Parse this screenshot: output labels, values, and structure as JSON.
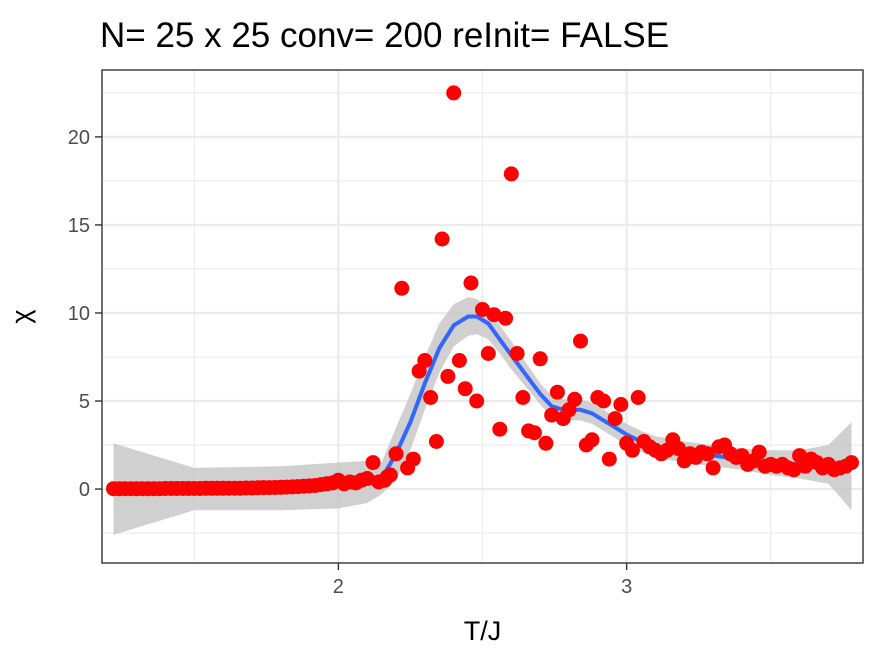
{
  "chart_data": {
    "type": "scatter",
    "title": "N= 25 x 25  conv= 200  reInit= FALSE",
    "xlabel": "T/J",
    "ylabel": "χ",
    "xlim": [
      1.18,
      3.82
    ],
    "ylim": [
      -4.2,
      23.8
    ],
    "x_ticks": [
      2,
      3
    ],
    "x_tick_labels": [
      "2",
      "3"
    ],
    "y_ticks": [
      0,
      5,
      10,
      15,
      20
    ],
    "y_tick_labels": [
      "0",
      "5",
      "10",
      "15",
      "20"
    ],
    "grid": true,
    "legend": "none",
    "colors": {
      "points": "#ff0000",
      "smooth_line": "#3366ff",
      "confidence_band": "#c8c8c8",
      "grid": "#ebebeb",
      "panel_border": "#333333"
    },
    "series": [
      {
        "kind": "points",
        "points": [
          [
            1.22,
            0.02
          ],
          [
            1.24,
            0.02
          ],
          [
            1.26,
            0.02
          ],
          [
            1.28,
            0.02
          ],
          [
            1.3,
            0.02
          ],
          [
            1.32,
            0.02
          ],
          [
            1.34,
            0.02
          ],
          [
            1.36,
            0.02
          ],
          [
            1.38,
            0.02
          ],
          [
            1.4,
            0.03
          ],
          [
            1.42,
            0.03
          ],
          [
            1.44,
            0.03
          ],
          [
            1.46,
            0.03
          ],
          [
            1.48,
            0.03
          ],
          [
            1.5,
            0.03
          ],
          [
            1.52,
            0.03
          ],
          [
            1.54,
            0.04
          ],
          [
            1.56,
            0.04
          ],
          [
            1.58,
            0.04
          ],
          [
            1.6,
            0.04
          ],
          [
            1.62,
            0.05
          ],
          [
            1.64,
            0.05
          ],
          [
            1.66,
            0.05
          ],
          [
            1.68,
            0.06
          ],
          [
            1.7,
            0.06
          ],
          [
            1.72,
            0.07
          ],
          [
            1.74,
            0.08
          ],
          [
            1.76,
            0.08
          ],
          [
            1.78,
            0.09
          ],
          [
            1.8,
            0.1
          ],
          [
            1.82,
            0.11
          ],
          [
            1.84,
            0.12
          ],
          [
            1.86,
            0.14
          ],
          [
            1.88,
            0.16
          ],
          [
            1.9,
            0.18
          ],
          [
            1.92,
            0.2
          ],
          [
            1.94,
            0.25
          ],
          [
            1.96,
            0.3
          ],
          [
            1.98,
            0.35
          ],
          [
            2.0,
            0.5
          ],
          [
            2.02,
            0.3
          ],
          [
            2.04,
            0.4
          ],
          [
            2.06,
            0.35
          ],
          [
            2.08,
            0.5
          ],
          [
            2.1,
            0.6
          ],
          [
            2.12,
            1.5
          ],
          [
            2.14,
            0.4
          ],
          [
            2.16,
            0.5
          ],
          [
            2.17,
            0.7
          ],
          [
            2.18,
            0.8
          ],
          [
            2.2,
            2.0
          ],
          [
            2.22,
            11.4
          ],
          [
            2.24,
            1.2
          ],
          [
            2.26,
            1.7
          ],
          [
            2.28,
            6.7
          ],
          [
            2.3,
            7.3
          ],
          [
            2.32,
            5.2
          ],
          [
            2.34,
            2.7
          ],
          [
            2.36,
            14.2
          ],
          [
            2.38,
            6.4
          ],
          [
            2.4,
            22.5
          ],
          [
            2.42,
            7.3
          ],
          [
            2.44,
            5.7
          ],
          [
            2.46,
            11.7
          ],
          [
            2.48,
            5.0
          ],
          [
            2.5,
            10.2
          ],
          [
            2.52,
            7.7
          ],
          [
            2.54,
            9.9
          ],
          [
            2.56,
            3.4
          ],
          [
            2.58,
            9.7
          ],
          [
            2.6,
            17.9
          ],
          [
            2.62,
            7.7
          ],
          [
            2.64,
            5.2
          ],
          [
            2.66,
            3.3
          ],
          [
            2.68,
            3.2
          ],
          [
            2.7,
            7.4
          ],
          [
            2.72,
            2.6
          ],
          [
            2.74,
            4.2
          ],
          [
            2.76,
            5.5
          ],
          [
            2.78,
            4.0
          ],
          [
            2.8,
            4.5
          ],
          [
            2.82,
            5.1
          ],
          [
            2.84,
            8.4
          ],
          [
            2.86,
            2.5
          ],
          [
            2.88,
            2.8
          ],
          [
            2.9,
            5.2
          ],
          [
            2.92,
            5.0
          ],
          [
            2.94,
            1.7
          ],
          [
            2.96,
            4.0
          ],
          [
            2.98,
            4.8
          ],
          [
            3.0,
            2.6
          ],
          [
            3.02,
            2.2
          ],
          [
            3.04,
            5.2
          ],
          [
            3.06,
            2.7
          ],
          [
            3.08,
            2.4
          ],
          [
            3.1,
            2.2
          ],
          [
            3.12,
            2.0
          ],
          [
            3.14,
            2.2
          ],
          [
            3.16,
            2.8
          ],
          [
            3.18,
            2.3
          ],
          [
            3.2,
            1.6
          ],
          [
            3.22,
            2.0
          ],
          [
            3.24,
            1.8
          ],
          [
            3.26,
            2.1
          ],
          [
            3.28,
            2.0
          ],
          [
            3.3,
            1.2
          ],
          [
            3.32,
            2.4
          ],
          [
            3.34,
            2.5
          ],
          [
            3.36,
            2.0
          ],
          [
            3.38,
            1.8
          ],
          [
            3.4,
            1.9
          ],
          [
            3.42,
            1.4
          ],
          [
            3.44,
            1.6
          ],
          [
            3.46,
            2.1
          ],
          [
            3.48,
            1.3
          ],
          [
            3.5,
            1.4
          ],
          [
            3.52,
            1.3
          ],
          [
            3.54,
            1.4
          ],
          [
            3.56,
            1.2
          ],
          [
            3.58,
            1.1
          ],
          [
            3.6,
            1.9
          ],
          [
            3.62,
            1.3
          ],
          [
            3.64,
            1.7
          ],
          [
            3.66,
            1.5
          ],
          [
            3.68,
            1.2
          ],
          [
            3.7,
            1.4
          ],
          [
            3.72,
            1.1
          ],
          [
            3.74,
            1.2
          ],
          [
            3.76,
            1.3
          ],
          [
            3.78,
            1.5
          ]
        ]
      },
      {
        "kind": "smooth",
        "points": [
          [
            1.22,
            0.0
          ],
          [
            1.5,
            0.02
          ],
          [
            1.8,
            0.05
          ],
          [
            2.0,
            0.2
          ],
          [
            2.1,
            0.4
          ],
          [
            2.15,
            0.6
          ],
          [
            2.2,
            2.0
          ],
          [
            2.25,
            3.8
          ],
          [
            2.3,
            6.0
          ],
          [
            2.35,
            8.0
          ],
          [
            2.4,
            9.3
          ],
          [
            2.45,
            9.8
          ],
          [
            2.48,
            9.8
          ],
          [
            2.52,
            9.4
          ],
          [
            2.56,
            8.5
          ],
          [
            2.6,
            7.6
          ],
          [
            2.65,
            6.5
          ],
          [
            2.7,
            5.4
          ],
          [
            2.74,
            4.7
          ],
          [
            2.78,
            4.5
          ],
          [
            2.84,
            4.5
          ],
          [
            2.88,
            4.3
          ],
          [
            2.92,
            3.9
          ],
          [
            2.96,
            3.5
          ],
          [
            3.0,
            3.1
          ],
          [
            3.05,
            2.7
          ],
          [
            3.1,
            2.4
          ],
          [
            3.2,
            2.1
          ],
          [
            3.3,
            1.9
          ],
          [
            3.4,
            1.7
          ],
          [
            3.5,
            1.5
          ],
          [
            3.6,
            1.4
          ],
          [
            3.7,
            1.4
          ],
          [
            3.78,
            1.5
          ]
        ],
        "band_lower": [
          -2.6,
          -1.2,
          -1.2,
          -1.1,
          -0.8,
          -0.3,
          0.5,
          2.2,
          4.5,
          6.6,
          8.1,
          8.7,
          8.8,
          8.5,
          7.7,
          6.8,
          5.8,
          4.8,
          4.1,
          3.9,
          3.9,
          3.7,
          3.3,
          2.9,
          2.5,
          2.1,
          1.8,
          1.5,
          1.3,
          1.1,
          0.8,
          0.6,
          0.3,
          -1.2
        ],
        "band_upper": [
          2.6,
          1.2,
          1.3,
          1.5,
          1.6,
          1.5,
          3.5,
          5.4,
          7.5,
          9.4,
          10.5,
          10.9,
          10.8,
          10.3,
          9.3,
          8.4,
          7.2,
          6.0,
          5.3,
          5.1,
          5.1,
          4.9,
          4.5,
          4.1,
          3.7,
          3.3,
          3.0,
          2.7,
          2.5,
          2.3,
          2.2,
          2.2,
          2.5,
          3.8
        ]
      }
    ]
  }
}
